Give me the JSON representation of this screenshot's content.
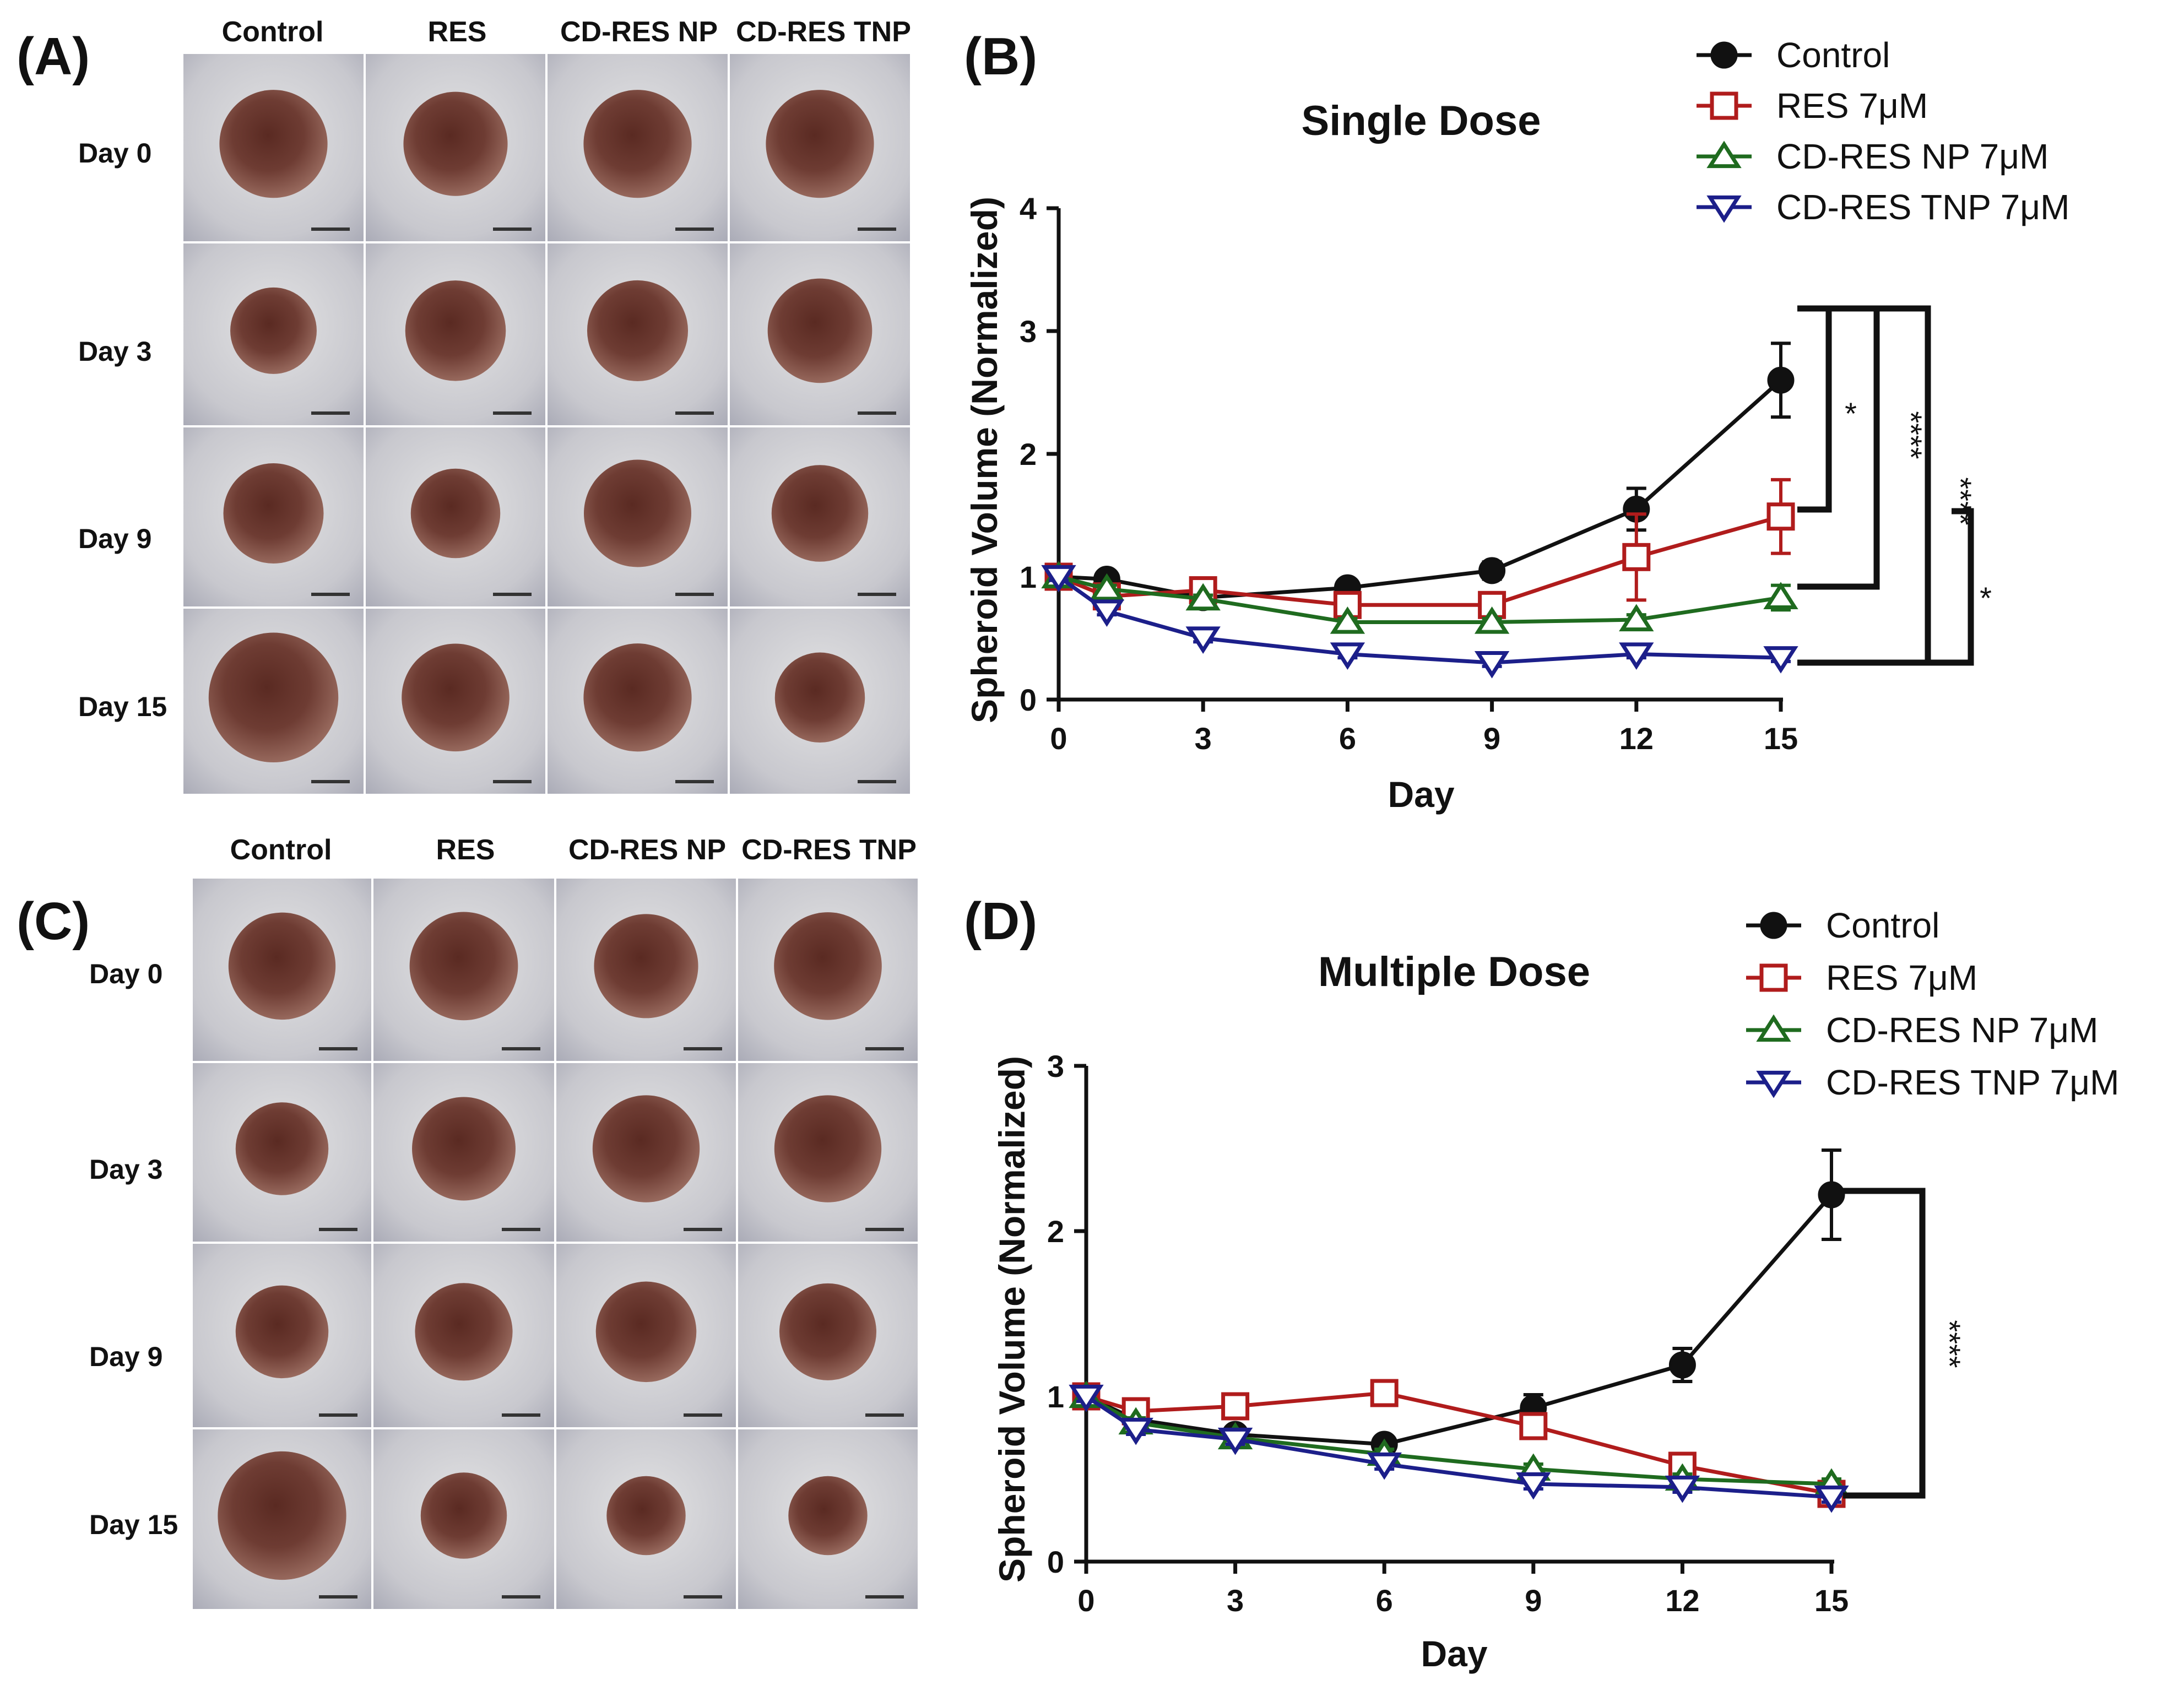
{
  "panels": {
    "A": {
      "label": "(A)",
      "columns": [
        "Control",
        "RES",
        "CD-RES NP",
        "CD-RES TNP"
      ],
      "rows": [
        "Day 0",
        "Day 3",
        "Day 9",
        "Day 15"
      ]
    },
    "B": {
      "label": "(B)"
    },
    "C": {
      "label": "(C)",
      "columns": [
        "Control",
        "RES",
        "CD-RES NP",
        "CD-RES TNP"
      ],
      "rows": [
        "Day 0",
        "Day 3",
        "Day 9",
        "Day 15"
      ]
    },
    "D": {
      "label": "(D)"
    }
  },
  "colors": {
    "control": "#111111",
    "res": "#b01c1c",
    "np": "#1f6b1f",
    "tnp": "#1c1f8a"
  },
  "chart_data": [
    {
      "type": "line",
      "title": "Single Dose",
      "xlabel": "Day",
      "ylabel": "Spheroid Volume (Normalized)",
      "x_ticks": [
        "0",
        "3",
        "6",
        "9",
        "12",
        "15"
      ],
      "y_ticks": [
        "0",
        "1",
        "2",
        "3",
        "4"
      ],
      "xlim": [
        0,
        15
      ],
      "ylim": [
        0,
        4
      ],
      "legend": [
        "Control",
        "RES 7μM",
        "CD-RES NP 7μM",
        "CD-RES TNP 7μM"
      ],
      "series": [
        {
          "name": "Control",
          "key": "control",
          "marker": "circle",
          "x": [
            0,
            1,
            3,
            6,
            9,
            12,
            15
          ],
          "y": [
            1.0,
            0.98,
            0.83,
            0.91,
            1.05,
            1.55,
            2.6
          ],
          "err": [
            0.03,
            0.03,
            0.03,
            0.03,
            0.07,
            0.17,
            0.3
          ]
        },
        {
          "name": "RES 7μM",
          "key": "res",
          "marker": "square",
          "x": [
            0,
            1,
            3,
            6,
            9,
            12,
            15
          ],
          "y": [
            1.0,
            0.84,
            0.89,
            0.77,
            0.77,
            1.16,
            1.49
          ],
          "err": [
            0.03,
            0.03,
            0.03,
            0.05,
            0.08,
            0.35,
            0.3
          ]
        },
        {
          "name": "CD-RES NP 7μM",
          "key": "np",
          "marker": "triangle-up",
          "x": [
            0,
            1,
            3,
            6,
            9,
            12,
            15
          ],
          "y": [
            1.0,
            0.9,
            0.82,
            0.63,
            0.63,
            0.65,
            0.83
          ],
          "err": [
            0.03,
            0.03,
            0.03,
            0.03,
            0.03,
            0.04,
            0.1
          ]
        },
        {
          "name": "CD-RES TNP 7μM",
          "key": "tnp",
          "marker": "triangle-down",
          "x": [
            0,
            1,
            3,
            6,
            9,
            12,
            15
          ],
          "y": [
            1.0,
            0.72,
            0.5,
            0.37,
            0.3,
            0.37,
            0.34
          ],
          "err": [
            0.03,
            0.03,
            0.03,
            0.03,
            0.03,
            0.03,
            0.03
          ]
        }
      ],
      "significance": [
        {
          "label": "*",
          "between": [
            "Control",
            "RES 7μM"
          ]
        },
        {
          "label": "****",
          "between": [
            "Control",
            "CD-RES NP 7μM"
          ]
        },
        {
          "label": "****",
          "between": [
            "Control",
            "CD-RES TNP 7μM"
          ]
        },
        {
          "label": "*",
          "between": [
            "RES 7μM",
            "CD-RES TNP 7μM"
          ]
        }
      ]
    },
    {
      "type": "line",
      "title": "Multiple Dose",
      "xlabel": "Day",
      "ylabel": "Spheroid Volume (Normalized)",
      "x_ticks": [
        "0",
        "3",
        "6",
        "9",
        "12",
        "15"
      ],
      "y_ticks": [
        "0",
        "1",
        "2",
        "3"
      ],
      "xlim": [
        0,
        15
      ],
      "ylim": [
        0,
        3
      ],
      "legend": [
        "Control",
        "RES 7μM",
        "CD-RES NP 7μM",
        "CD-RES TNP 7μM"
      ],
      "series": [
        {
          "name": "Control",
          "key": "control",
          "marker": "circle",
          "x": [
            0,
            1,
            3,
            6,
            9,
            12,
            15
          ],
          "y": [
            1.0,
            0.86,
            0.77,
            0.71,
            0.93,
            1.19,
            2.22
          ],
          "err": [
            0.03,
            0.03,
            0.03,
            0.03,
            0.08,
            0.1,
            0.27
          ]
        },
        {
          "name": "RES 7μM",
          "key": "res",
          "marker": "square",
          "x": [
            0,
            1,
            3,
            6,
            9,
            12,
            15
          ],
          "y": [
            1.0,
            0.91,
            0.94,
            1.02,
            0.82,
            0.58,
            0.41
          ],
          "err": [
            0.03,
            0.03,
            0.03,
            0.03,
            0.04,
            0.03,
            0.03
          ]
        },
        {
          "name": "CD-RES NP 7μM",
          "key": "np",
          "marker": "triangle-up",
          "x": [
            0,
            1,
            3,
            6,
            9,
            12,
            15
          ],
          "y": [
            1.0,
            0.84,
            0.75,
            0.65,
            0.56,
            0.5,
            0.47
          ],
          "err": [
            0.03,
            0.03,
            0.03,
            0.03,
            0.03,
            0.03,
            0.03
          ]
        },
        {
          "name": "CD-RES TNP 7μM",
          "key": "tnp",
          "marker": "triangle-down",
          "x": [
            0,
            1,
            3,
            6,
            9,
            12,
            15
          ],
          "y": [
            1.0,
            0.8,
            0.74,
            0.59,
            0.47,
            0.45,
            0.39
          ],
          "err": [
            0.03,
            0.03,
            0.03,
            0.03,
            0.03,
            0.03,
            0.03
          ]
        }
      ],
      "significance": [
        {
          "label": "****",
          "between": [
            "Control",
            "CD-RES TNP 7μM"
          ]
        }
      ]
    }
  ]
}
